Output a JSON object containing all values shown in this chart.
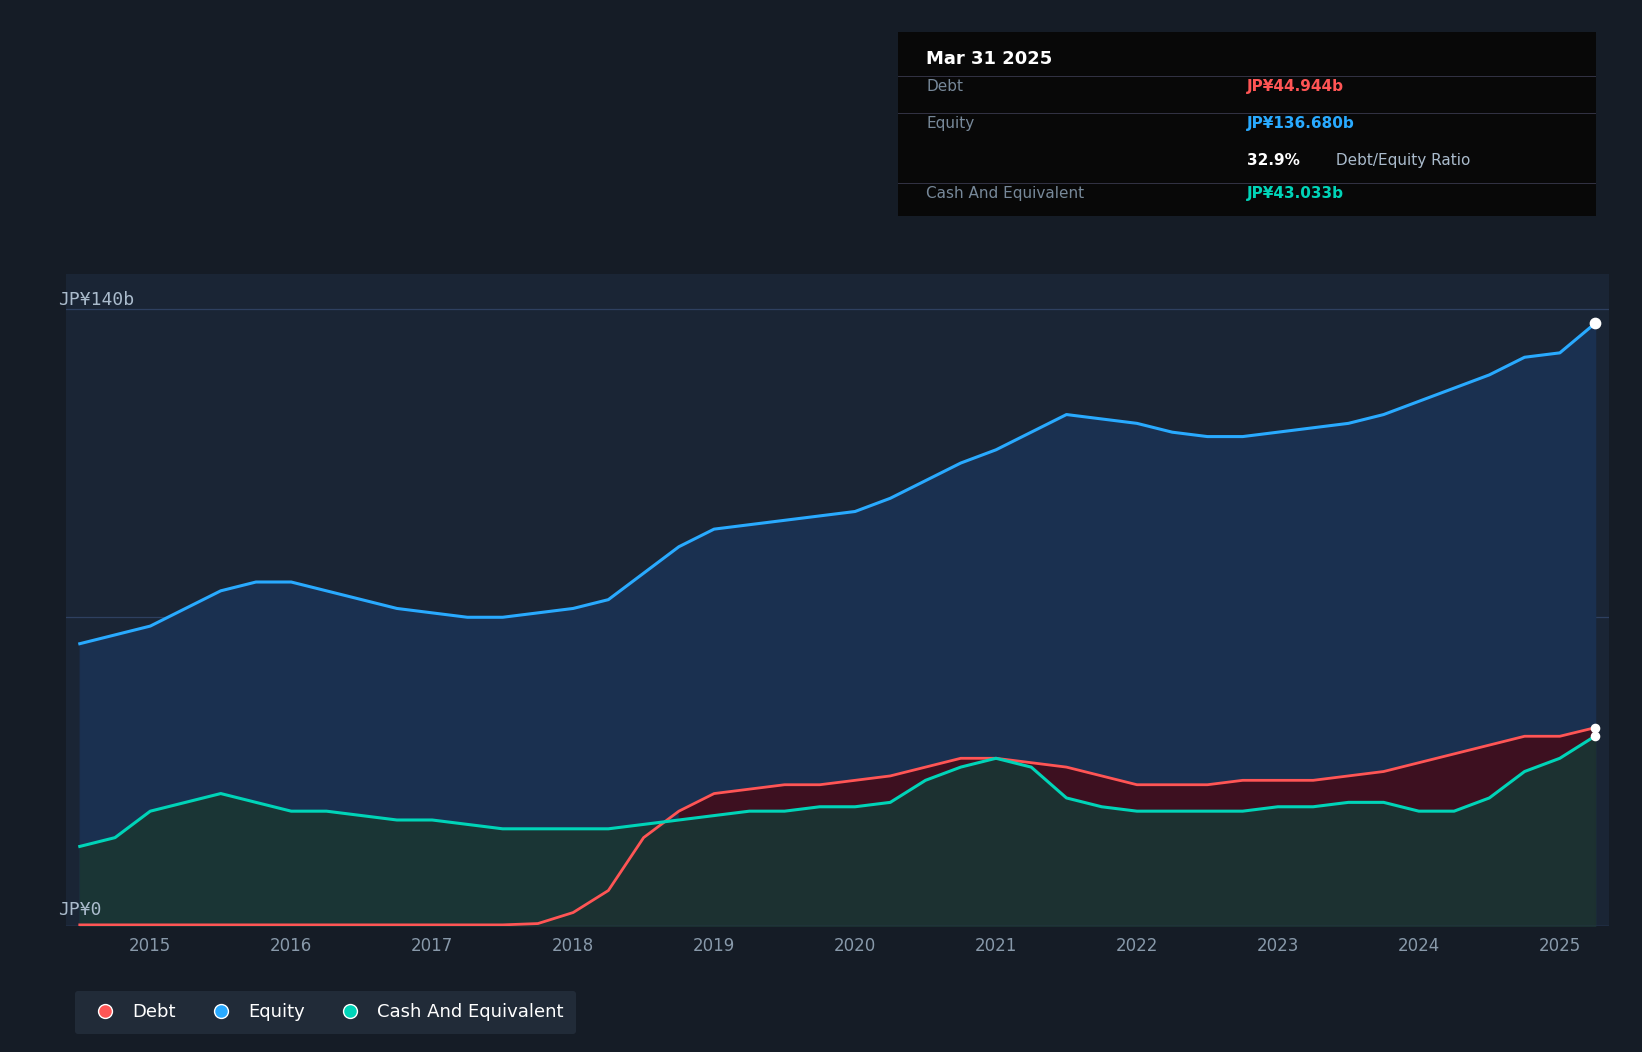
{
  "bg_color": "#151c26",
  "plot_bg_color": "#1a2535",
  "grid_color": "#2a3d55",
  "title_date": "Mar 31 2025",
  "tooltip_debt_label": "Debt",
  "tooltip_debt_value": "JP¥44.944b",
  "tooltip_debt_color": "#ff5555",
  "tooltip_equity_label": "Equity",
  "tooltip_equity_value": "JP¥136.680b",
  "tooltip_equity_color": "#29aaff",
  "tooltip_ratio": "32.9% Debt/Equity Ratio",
  "tooltip_cash_label": "Cash And Equivalent",
  "tooltip_cash_value": "JP¥43.033b",
  "tooltip_cash_color": "#00d4b8",
  "ytick_label_top": "JP¥140b",
  "ytick_label_bot": "JP¥0",
  "equity_color": "#29aaff",
  "equity_fill": "#1a3050",
  "debt_color": "#ff5555",
  "debt_fill": "#4a1528",
  "cash_color": "#00d4b8",
  "cash_fill": "#1a3535",
  "legend_bg": "#252f3d",
  "x_years": [
    2014.5,
    2014.75,
    2015.0,
    2015.25,
    2015.5,
    2015.75,
    2016.0,
    2016.25,
    2016.5,
    2016.75,
    2017.0,
    2017.25,
    2017.5,
    2017.75,
    2018.0,
    2018.25,
    2018.5,
    2018.75,
    2019.0,
    2019.25,
    2019.5,
    2019.75,
    2020.0,
    2020.25,
    2020.5,
    2020.75,
    2021.0,
    2021.25,
    2021.5,
    2021.75,
    2022.0,
    2022.25,
    2022.5,
    2022.75,
    2023.0,
    2023.25,
    2023.5,
    2023.75,
    2024.0,
    2024.25,
    2024.5,
    2024.75,
    2025.0,
    2025.25
  ],
  "equity": [
    64,
    66,
    68,
    72,
    76,
    78,
    78,
    76,
    74,
    72,
    71,
    70,
    70,
    71,
    72,
    74,
    80,
    86,
    90,
    91,
    92,
    93,
    94,
    97,
    101,
    105,
    108,
    112,
    116,
    115,
    114,
    112,
    111,
    111,
    112,
    113,
    114,
    116,
    119,
    122,
    125,
    129,
    130,
    136.68
  ],
  "debt": [
    0.2,
    0.2,
    0.2,
    0.2,
    0.2,
    0.2,
    0.2,
    0.2,
    0.2,
    0.2,
    0.2,
    0.2,
    0.2,
    0.5,
    3,
    8,
    20,
    26,
    30,
    31,
    32,
    32,
    33,
    34,
    36,
    38,
    38,
    37,
    36,
    34,
    32,
    32,
    32,
    33,
    33,
    33,
    34,
    35,
    37,
    39,
    41,
    43,
    43,
    44.944
  ],
  "cash": [
    18,
    20,
    26,
    28,
    30,
    28,
    26,
    26,
    25,
    24,
    24,
    23,
    22,
    22,
    22,
    22,
    23,
    24,
    25,
    26,
    26,
    27,
    27,
    28,
    33,
    36,
    38,
    36,
    29,
    27,
    26,
    26,
    26,
    26,
    27,
    27,
    28,
    28,
    26,
    26,
    29,
    35,
    38,
    43.033
  ],
  "xlim": [
    2014.4,
    2025.35
  ],
  "ylim": [
    0,
    148
  ],
  "xticks": [
    2015,
    2016,
    2017,
    2018,
    2019,
    2020,
    2021,
    2022,
    2023,
    2024,
    2025
  ]
}
